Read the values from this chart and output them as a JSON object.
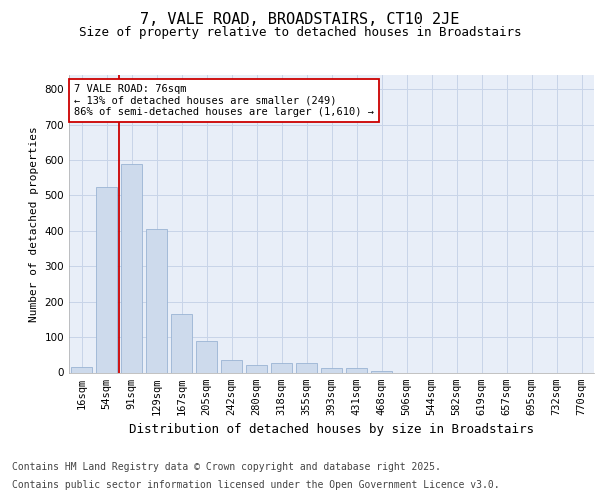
{
  "title": "7, VALE ROAD, BROADSTAIRS, CT10 2JE",
  "subtitle": "Size of property relative to detached houses in Broadstairs",
  "xlabel": "Distribution of detached houses by size in Broadstairs",
  "ylabel": "Number of detached properties",
  "categories": [
    "16sqm",
    "54sqm",
    "91sqm",
    "129sqm",
    "167sqm",
    "205sqm",
    "242sqm",
    "280sqm",
    "318sqm",
    "355sqm",
    "393sqm",
    "431sqm",
    "468sqm",
    "506sqm",
    "544sqm",
    "582sqm",
    "619sqm",
    "657sqm",
    "695sqm",
    "732sqm",
    "770sqm"
  ],
  "bar_heights": [
    15,
    525,
    590,
    405,
    165,
    88,
    35,
    22,
    28,
    28,
    12,
    12,
    3,
    0,
    0,
    0,
    0,
    0,
    0,
    0,
    0
  ],
  "bar_color": "#cddaec",
  "bar_edge_color": "#9ab4d4",
  "vline_x": 1.5,
  "vline_color": "#cc0000",
  "annotation_text": "7 VALE ROAD: 76sqm\n← 13% of detached houses are smaller (249)\n86% of semi-detached houses are larger (1,610) →",
  "annotation_box_color": "#ffffff",
  "annotation_box_edge": "#cc0000",
  "ylim": [
    0,
    840
  ],
  "yticks": [
    0,
    100,
    200,
    300,
    400,
    500,
    600,
    700,
    800
  ],
  "grid_color": "#c8d4e8",
  "bg_color": "#e8eef8",
  "footer_line1": "Contains HM Land Registry data © Crown copyright and database right 2025.",
  "footer_line2": "Contains public sector information licensed under the Open Government Licence v3.0.",
  "title_fontsize": 11,
  "subtitle_fontsize": 9,
  "xlabel_fontsize": 9,
  "ylabel_fontsize": 8,
  "tick_fontsize": 7.5,
  "footer_fontsize": 7
}
